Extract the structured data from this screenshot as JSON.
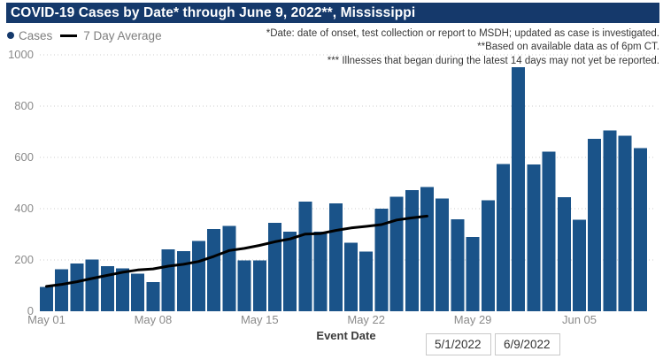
{
  "title": "COVID-19 Cases by Date* through June 9, 2022**, Mississippi",
  "legend": {
    "cases_label": "Cases",
    "avg_label": "7 Day Average"
  },
  "annotations": {
    "line1": "*Date: date of onset, test collection or report to MSDH; updated as case is investigated.",
    "line2": "**Based on available data as of 6pm CT.",
    "line3": "*** Illnesses that began during the latest 14 days may not yet be reported."
  },
  "xaxis": {
    "label": "Event Date",
    "ticks": [
      "May 01",
      "May 08",
      "May 15",
      "May 22",
      "May 29",
      "Jun 05"
    ]
  },
  "yaxis": {
    "ticks": [
      "0",
      "200",
      "400",
      "600",
      "800",
      "1000"
    ]
  },
  "date_inputs": {
    "start": "5/1/2022",
    "end": "6/9/2022"
  },
  "colors": {
    "title_bar": "#15396B",
    "bar": "#1A5389",
    "avg_line": "#000000",
    "axis_text": "#8a8a8a",
    "gridline": "#cccccc"
  },
  "chart_data": {
    "type": "bar",
    "title": "COVID-19 Cases by Date* through June 9, 2022**, Mississippi",
    "xlabel": "Event Date",
    "ylabel": "",
    "ylim": [
      0,
      1000
    ],
    "y_ticks": [
      0,
      200,
      400,
      600,
      800,
      1000
    ],
    "x_tick_labels": [
      "May 01",
      "May 08",
      "May 15",
      "May 22",
      "May 29",
      "Jun 05"
    ],
    "grid": true,
    "legend_position": "top-left",
    "categories": [
      "May 01",
      "May 02",
      "May 03",
      "May 04",
      "May 05",
      "May 06",
      "May 07",
      "May 08",
      "May 09",
      "May 10",
      "May 11",
      "May 12",
      "May 13",
      "May 14",
      "May 15",
      "May 16",
      "May 17",
      "May 18",
      "May 19",
      "May 20",
      "May 21",
      "May 22",
      "May 23",
      "May 24",
      "May 25",
      "May 26",
      "May 27",
      "May 28",
      "May 29",
      "May 30",
      "May 31",
      "Jun 01",
      "Jun 02",
      "Jun 03",
      "Jun 04",
      "Jun 05",
      "Jun 06",
      "Jun 07",
      "Jun 08",
      "Jun 09"
    ],
    "series": [
      {
        "name": "Cases",
        "type": "bar",
        "color": "#1A5389",
        "values": [
          95,
          164,
          187,
          202,
          176,
          168,
          147,
          113,
          242,
          235,
          274,
          320,
          332,
          198,
          198,
          345,
          310,
          427,
          310,
          420,
          268,
          233,
          400,
          446,
          472,
          484,
          440,
          358,
          290,
          432,
          575,
          952,
          573,
          622,
          444,
          357,
          672,
          706,
          685,
          636
        ]
      },
      {
        "name": "7 Day Average",
        "type": "line",
        "color": "#000000",
        "values": [
          97,
          105,
          115,
          128,
          140,
          152,
          161,
          165,
          176,
          183,
          194,
          214,
          237,
          245,
          257,
          271,
          282,
          301,
          303,
          315,
          325,
          331,
          338,
          356,
          364,
          371,
          null,
          null,
          null,
          null,
          null,
          null,
          null,
          null,
          null,
          null,
          null,
          null,
          null,
          null
        ]
      }
    ]
  }
}
